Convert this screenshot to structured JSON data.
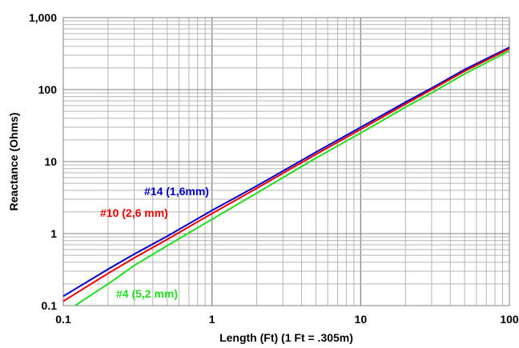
{
  "chart_data": {
    "type": "line",
    "title": "",
    "xlabel": "Length (Ft) (1 Ft = .305m)",
    "ylabel": "Reactance (Ohms)",
    "x_scale": "log",
    "y_scale": "log",
    "xlim": [
      0.1,
      100
    ],
    "ylim": [
      0.1,
      1000
    ],
    "grid": true,
    "x_ticks": [
      {
        "value": 0.1,
        "label": "0.1"
      },
      {
        "value": 1,
        "label": "1"
      },
      {
        "value": 10,
        "label": "10"
      },
      {
        "value": 100,
        "label": "100"
      }
    ],
    "y_ticks": [
      {
        "value": 0.1,
        "label": "0.1"
      },
      {
        "value": 1,
        "label": "1"
      },
      {
        "value": 10,
        "label": "10"
      },
      {
        "value": 100,
        "label": "100"
      },
      {
        "value": 1000,
        "label": "1,000"
      }
    ],
    "series": [
      {
        "name": "#14 (1,6mm)",
        "color": "#0000cc",
        "x": [
          0.1,
          0.2,
          0.3,
          0.5,
          1,
          2,
          3,
          5,
          10,
          20,
          30,
          50,
          100
        ],
        "y": [
          0.135,
          0.32,
          0.52,
          0.92,
          2.1,
          4.6,
          7.4,
          13.5,
          30,
          67,
          105,
          190,
          385
        ]
      },
      {
        "name": "#10 (2,6 mm)",
        "color": "#ee0000",
        "x": [
          0.1,
          0.2,
          0.3,
          0.5,
          1,
          2,
          3,
          5,
          10,
          20,
          30,
          50,
          100
        ],
        "y": [
          0.115,
          0.28,
          0.46,
          0.83,
          1.9,
          4.25,
          6.9,
          12.6,
          28,
          63,
          100,
          180,
          370
        ]
      },
      {
        "name": "#4 (5,2 mm)",
        "color": "#22dd22",
        "x": [
          0.12,
          0.2,
          0.3,
          0.5,
          1,
          2,
          3,
          5,
          10,
          20,
          30,
          50,
          100
        ],
        "y": [
          0.1,
          0.2,
          0.36,
          0.68,
          1.58,
          3.65,
          6.0,
          11.2,
          25,
          57,
          90,
          165,
          345
        ]
      }
    ]
  }
}
